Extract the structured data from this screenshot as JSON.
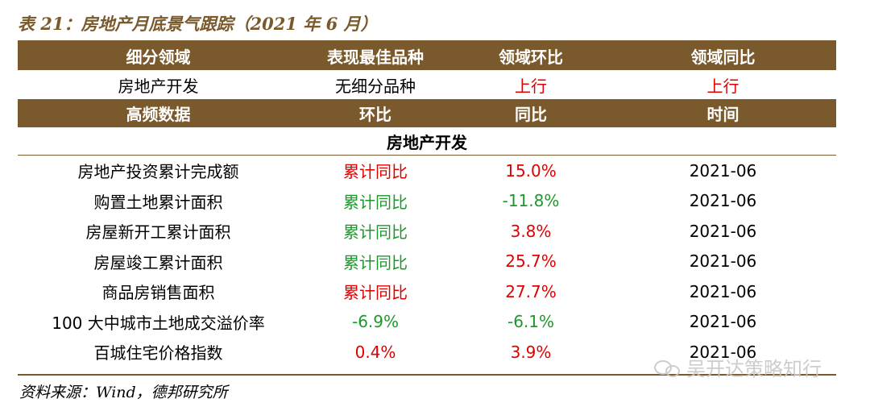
{
  "title": "表 21：房地产月底景气跟踪（2021 年 6 月）",
  "header1": [
    "细分领域",
    "表现最佳品种",
    "领域环比",
    "领域同比"
  ],
  "summary": {
    "sector": "房地产开发",
    "best": "无细分品种",
    "mom": "上行",
    "yoy": "上行"
  },
  "header2": [
    "高频数据",
    "环比",
    "同比",
    "时间"
  ],
  "section": "房地产开发",
  "rows": [
    {
      "name": "房地产投资累计完成额",
      "mom": "累计同比",
      "yoy": "15.0%",
      "time": "2021-06"
    },
    {
      "name": "购置土地累计面积",
      "mom": "累计同比",
      "yoy": "-11.8%",
      "time": "2021-06"
    },
    {
      "name": "房屋新开工累计面积",
      "mom": "累计同比",
      "yoy": "3.8%",
      "time": "2021-06"
    },
    {
      "name": "房屋竣工累计面积",
      "mom": "累计同比",
      "yoy": "25.7%",
      "time": "2021-06"
    },
    {
      "name": "商品房销售面积",
      "mom": "累计同比",
      "yoy": "27.7%",
      "time": "2021-06"
    },
    {
      "name": "100 大中城市土地成交溢价率",
      "mom": "-6.9%",
      "yoy": "-6.1%",
      "time": "2021-06"
    },
    {
      "name": "百城住宅价格指数",
      "mom": "0.4%",
      "yoy": "3.9%",
      "time": "2021-06"
    }
  ],
  "source": "资料来源：Wind，德邦研究所",
  "watermark": "吴开达策略知行",
  "colors": {
    "brown": "#7a5a2c",
    "red": "#e00000",
    "green": "#1a9a2a"
  }
}
